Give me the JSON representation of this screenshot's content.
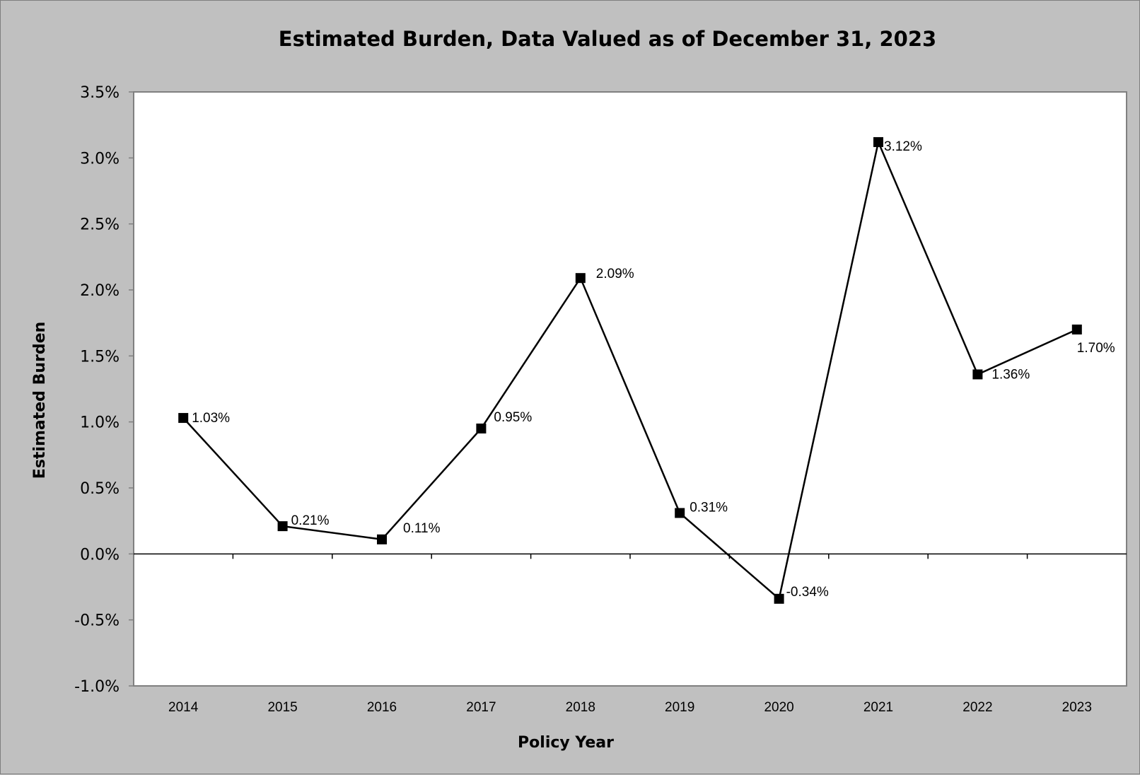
{
  "chart_data": {
    "type": "line",
    "title": "Estimated Burden, Data Valued as of December 31, 2023",
    "xlabel": "Policy Year",
    "ylabel": "Estimated Burden",
    "categories": [
      "2014",
      "2015",
      "2016",
      "2017",
      "2018",
      "2019",
      "2020",
      "2021",
      "2022",
      "2023"
    ],
    "series": [
      {
        "values": [
          1.03,
          0.21,
          0.11,
          0.95,
          2.09,
          0.31,
          -0.34,
          3.12,
          1.36,
          1.7
        ],
        "data_labels": [
          "1.03%",
          "0.21%",
          "0.11%",
          "0.95%",
          "2.09%",
          "0.31%",
          "-0.34%",
          "3.12%",
          "1.36%",
          "1.70%"
        ],
        "color": "#000000",
        "marker": "square"
      }
    ],
    "ylim": [
      -1.0,
      3.5
    ],
    "yticks": [
      -1.0,
      -0.5,
      0.0,
      0.5,
      1.0,
      1.5,
      2.0,
      2.5,
      3.0,
      3.5
    ],
    "ytick_labels": [
      "-1.0%",
      "-0.5%",
      "0.0%",
      "0.5%",
      "1.0%",
      "1.5%",
      "2.0%",
      "2.5%",
      "3.0%",
      "3.5%"
    ],
    "grid": false,
    "legend": "none",
    "colors": {
      "background": "#c0c0c0",
      "plot_area": "#ffffff",
      "line": "#000000"
    }
  }
}
